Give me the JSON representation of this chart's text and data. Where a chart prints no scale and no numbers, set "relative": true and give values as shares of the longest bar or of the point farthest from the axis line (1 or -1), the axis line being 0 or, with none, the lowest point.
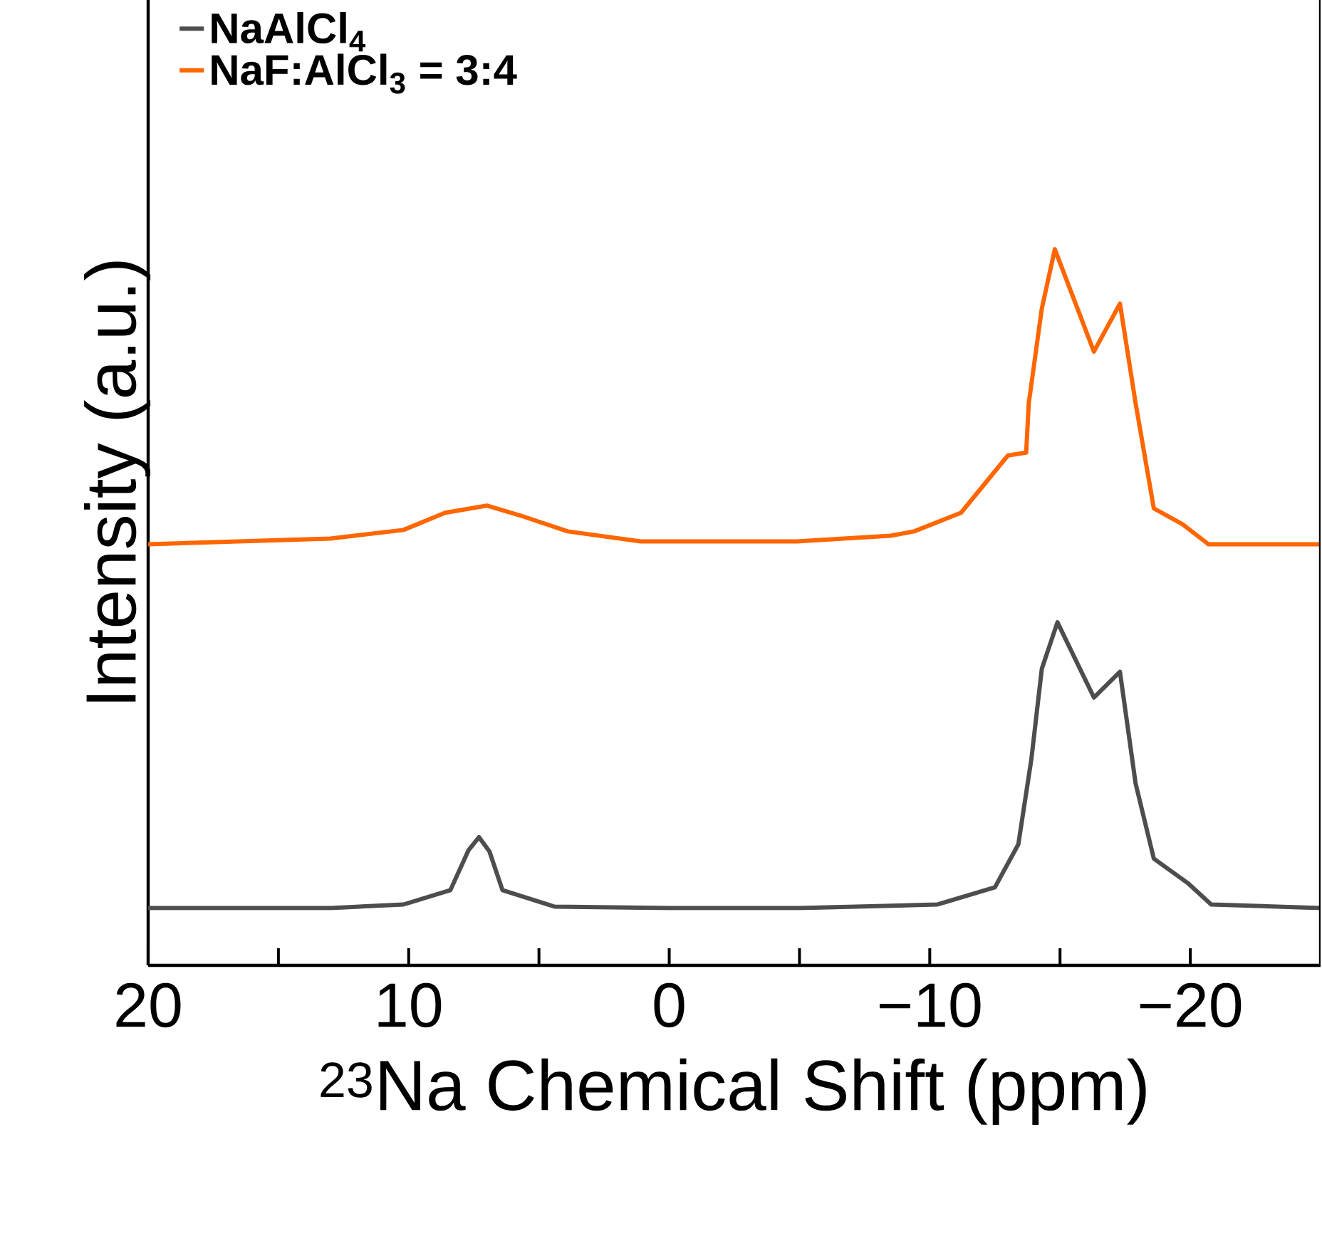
{
  "chart_data": {
    "type": "line",
    "relative": true,
    "xlabel": "$^{23}$Na Chemical Shift (ppm)",
    "ylabel": "Intensity (a.u.)",
    "xlim": [
      20,
      -25
    ],
    "xticks": [
      20,
      {
        "value": 15,
        "label": null
      },
      10,
      {
        "value": 5,
        "label": null
      },
      0,
      {
        "value": -5,
        "label": null
      },
      {
        "value": -10,
        "label": "−10"
      },
      {
        "value": -15,
        "label": null
      },
      {
        "value": -20,
        "label": "−20"
      }
    ],
    "legend": "top left",
    "grid": false,
    "marker": "none",
    "line_style": "solid",
    "series": [
      {
        "name": "NaAlCl$_{4}$",
        "color": "#4d4d4d",
        "x": [
          20,
          13,
          10.2,
          8.4,
          7.7,
          7.3,
          6.9,
          6.4,
          4.4,
          0,
          -5,
          -10.3,
          -12.5,
          -13.4,
          -13.9,
          -14.3,
          -14.9,
          -16.3,
          -17.3,
          -17.9,
          -18.6,
          -19.9,
          -20.8,
          -25
        ],
        "values": [
          0.08,
          0.08,
          0.085,
          0.105,
          0.161,
          0.179,
          0.159,
          0.105,
          0.082,
          0.08,
          0.08,
          0.085,
          0.109,
          0.169,
          0.288,
          0.414,
          0.479,
          0.374,
          0.41,
          0.254,
          0.149,
          0.115,
          0.085,
          0.08
        ]
      },
      {
        "name": "NaF:AlCl$_{3}$ = 3:4",
        "color": "#ff6600",
        "x": [
          20,
          13,
          10.2,
          8.6,
          7,
          5.7,
          3.9,
          1.1,
          -4.9,
          -8.5,
          -9.4,
          -11.2,
          -13,
          -13.7,
          -13.8,
          -14.3,
          -14.8,
          -16.3,
          -17.3,
          -17.9,
          -18.6,
          -19.7,
          -20.7,
          -25
        ],
        "values": [
          0.588,
          0.596,
          0.608,
          0.632,
          0.642,
          0.628,
          0.606,
          0.592,
          0.592,
          0.6,
          0.606,
          0.632,
          0.712,
          0.716,
          0.785,
          0.917,
          1.0,
          0.857,
          0.924,
          0.785,
          0.638,
          0.616,
          0.588,
          0.588
        ]
      }
    ]
  }
}
